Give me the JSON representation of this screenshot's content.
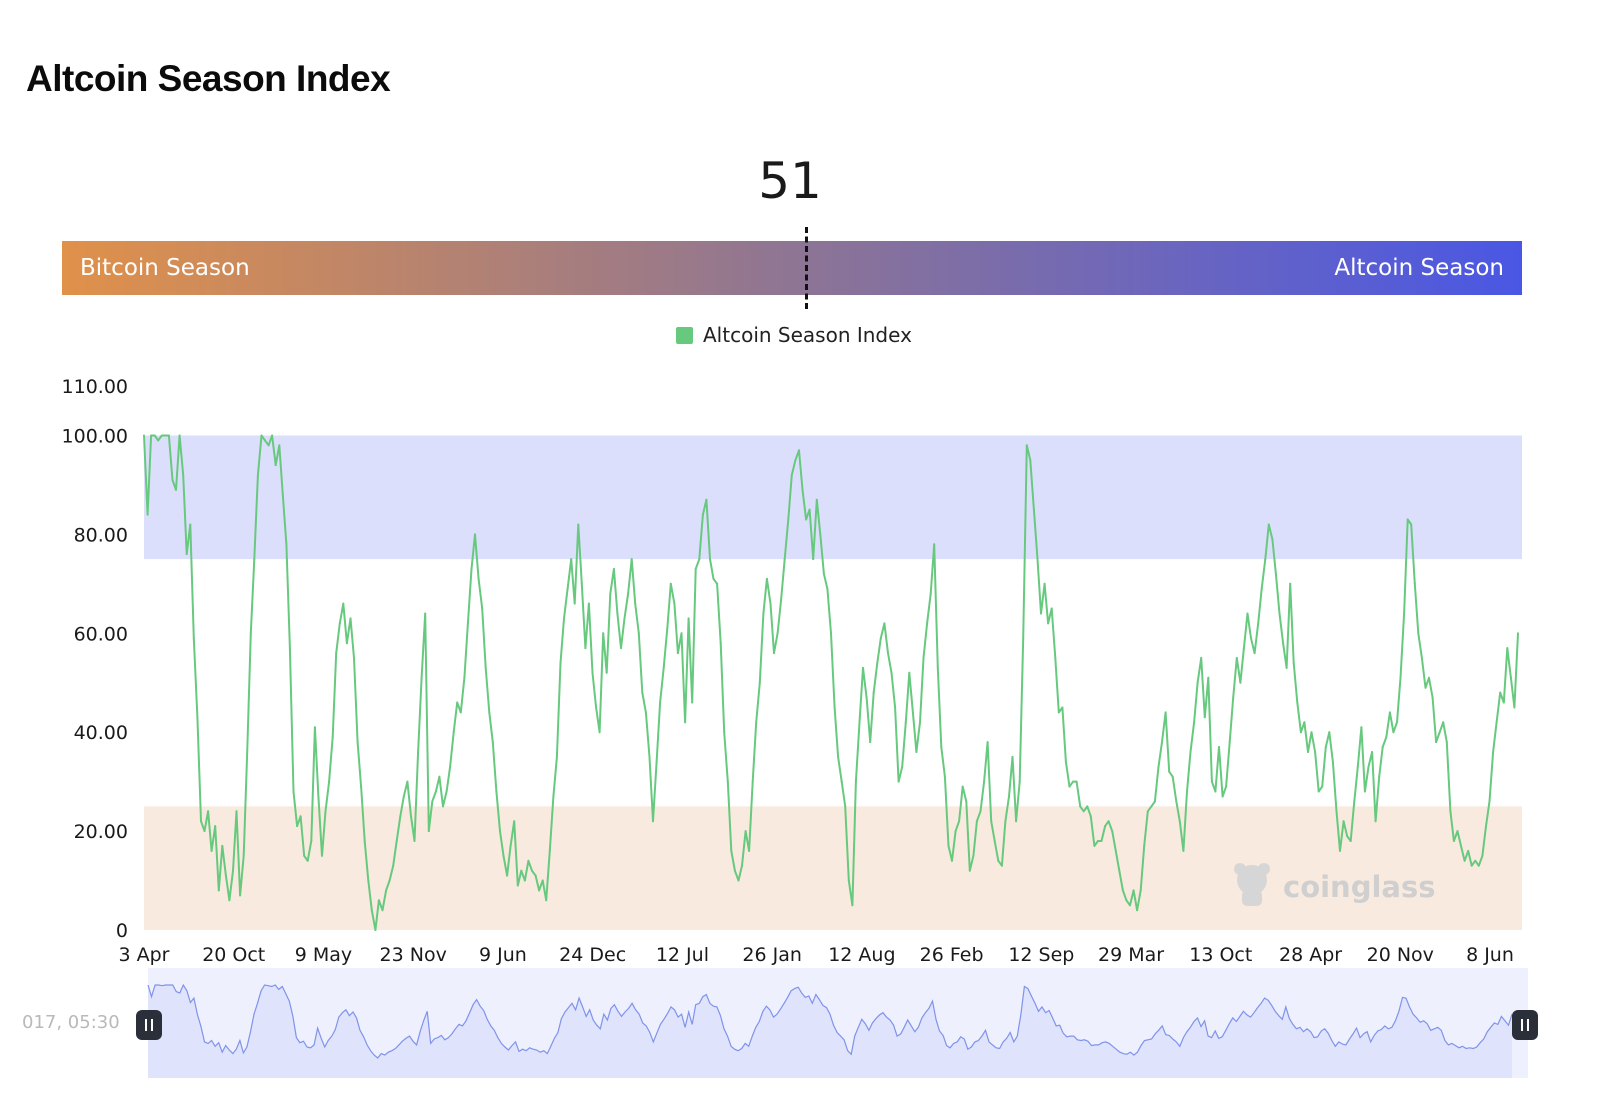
{
  "page": {
    "title": "Altcoin Season Index"
  },
  "gauge": {
    "value": "51",
    "value_numeric": 51,
    "left_label": "Bitcoin Season",
    "right_label": "Altcoin Season",
    "gradient_start": "#e0914a",
    "gradient_mid": "#8e7594",
    "gradient_end": "#4a57e4"
  },
  "watermark": {
    "text": "coinglass"
  },
  "slider": {
    "start_label": "017, 05:30"
  },
  "colors": {
    "line": "#67c97e",
    "altcoin_zone": "#dcdffb",
    "bitcoin_zone": "#f8eadf",
    "navigator_fill": "#dfe3fb",
    "navigator_line": "#7f93ea",
    "handle": "#2b2f3a"
  },
  "chart_data": {
    "type": "line",
    "series": [
      {
        "name": "Altcoin Season Index",
        "values": [
          100,
          84,
          100,
          100,
          99,
          100,
          100,
          100,
          91,
          89,
          100,
          92,
          76,
          82,
          59,
          43,
          22,
          20,
          24,
          16,
          21,
          8,
          17,
          11,
          6,
          12,
          24,
          7,
          15,
          36,
          60,
          75,
          92,
          100,
          99,
          98,
          100,
          94,
          98,
          88,
          78,
          57,
          28,
          21,
          23,
          15,
          14,
          18,
          41,
          27,
          15,
          24,
          30,
          39,
          56,
          62,
          66,
          58,
          63,
          55,
          38,
          29,
          18,
          10,
          4,
          0,
          6,
          4,
          8,
          10,
          13,
          18,
          23,
          27,
          30,
          23,
          18,
          36,
          51,
          64,
          20,
          26,
          28,
          31,
          25,
          28,
          33,
          40,
          46,
          44,
          51,
          62,
          73,
          80,
          71,
          65,
          53,
          44,
          38,
          28,
          20,
          15,
          11,
          17,
          22,
          9,
          12,
          10,
          14,
          12,
          11,
          8,
          10,
          6,
          16,
          27,
          35,
          54,
          63,
          69,
          75,
          66,
          82,
          70,
          57,
          66,
          52,
          45,
          40,
          60,
          52,
          68,
          73,
          64,
          57,
          63,
          68,
          75,
          66,
          60,
          48,
          44,
          35,
          22,
          34,
          46,
          53,
          61,
          70,
          66,
          56,
          60,
          42,
          63,
          46,
          73,
          75,
          84,
          87,
          75,
          71,
          70,
          58,
          40,
          30,
          16,
          12,
          10,
          13,
          20,
          16,
          30,
          42,
          50,
          64,
          71,
          66,
          56,
          60,
          67,
          75,
          83,
          92,
          95,
          97,
          89,
          83,
          85,
          75,
          87,
          80,
          72,
          69,
          60,
          45,
          35,
          30,
          25,
          10,
          5,
          30,
          42,
          53,
          47,
          38,
          48,
          54,
          59,
          62,
          56,
          52,
          45,
          30,
          33,
          42,
          52,
          44,
          36,
          42,
          55,
          62,
          68,
          78,
          53,
          37,
          31,
          17,
          14,
          20,
          22,
          29,
          26,
          12,
          15,
          22,
          24,
          30,
          38,
          22,
          18,
          14,
          13,
          22,
          27,
          35,
          22,
          30,
          59,
          98,
          95,
          85,
          75,
          64,
          70,
          62,
          65,
          55,
          44,
          45,
          34,
          29,
          30,
          30,
          25,
          24,
          25,
          23,
          17,
          18,
          18,
          21,
          22,
          20,
          16,
          12,
          8,
          6,
          5,
          8,
          4,
          8,
          17,
          24,
          25,
          26,
          33,
          38,
          44,
          32,
          31,
          26,
          22,
          16,
          28,
          36,
          42,
          50,
          55,
          43,
          51,
          30,
          28,
          37,
          27,
          29,
          38,
          47,
          55,
          50,
          57,
          64,
          59,
          56,
          62,
          69,
          75,
          82,
          79,
          72,
          64,
          58,
          53,
          70,
          54,
          46,
          40,
          42,
          36,
          40,
          36,
          28,
          29,
          37,
          40,
          34,
          24,
          16,
          22,
          19,
          18,
          26,
          33,
          41,
          28,
          33,
          36,
          22,
          31,
          37,
          39,
          44,
          40,
          42,
          51,
          64,
          83,
          82,
          70,
          60,
          55,
          49,
          51,
          47,
          38,
          40,
          42,
          38,
          24,
          18,
          20,
          17,
          14,
          16,
          13,
          14,
          13,
          15,
          21,
          26,
          36,
          42,
          48,
          46,
          57,
          51,
          45,
          60
        ]
      }
    ],
    "x_tick_labels": [
      "3 Apr",
      "20 Oct",
      "9 May",
      "23 Nov",
      "9 Jun",
      "24 Dec",
      "12 Jul",
      "26 Jan",
      "12 Aug",
      "26 Feb",
      "12 Sep",
      "29 Mar",
      "13 Oct",
      "28 Apr",
      "20 Nov",
      "8 Jun"
    ],
    "y_ticks": [
      0,
      20,
      40,
      60,
      80,
      100,
      110
    ],
    "y_tick_labels": [
      "0",
      "20.00",
      "40.00",
      "60.00",
      "80.00",
      "100.00",
      "110.00"
    ],
    "ylim": [
      0,
      110
    ],
    "bands": [
      {
        "from": 75,
        "to": 100,
        "color": "#dcdffb"
      },
      {
        "from": 0,
        "to": 25,
        "color": "#f8eadf"
      }
    ],
    "legend": "top-center",
    "grid": false
  }
}
